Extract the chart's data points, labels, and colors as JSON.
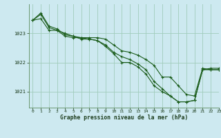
{
  "title": "Graphe pression niveau de la mer (hPa)",
  "background_color": "#cde9f0",
  "grid_color": "#a0ccbb",
  "line_color": "#1a5c1a",
  "marker_color": "#1a5c1a",
  "xlim": [
    -0.5,
    23
  ],
  "ylim": [
    1020.45,
    1024.0
  ],
  "yticks": [
    1021,
    1022,
    1023
  ],
  "xticks": [
    0,
    1,
    2,
    3,
    4,
    5,
    6,
    7,
    8,
    9,
    10,
    11,
    12,
    13,
    14,
    15,
    16,
    17,
    18,
    19,
    20,
    21,
    22,
    23
  ],
  "series": [
    [
      1023.45,
      1023.65,
      1023.2,
      1023.1,
      1023.0,
      1022.9,
      1022.85,
      1022.85,
      1022.85,
      1022.8,
      1022.6,
      1022.4,
      1022.35,
      1022.25,
      1022.1,
      1021.9,
      1021.5,
      1021.5,
      1021.2,
      1020.9,
      1020.85,
      1021.8,
      1021.75,
      1021.75
    ],
    [
      1023.45,
      1023.7,
      1023.25,
      1023.15,
      1022.95,
      1022.9,
      1022.8,
      1022.8,
      1022.75,
      1022.6,
      1022.35,
      1022.2,
      1022.1,
      1021.95,
      1021.75,
      1021.35,
      1021.1,
      1020.85,
      1020.65,
      1020.65,
      1020.7,
      1021.75,
      1021.75,
      1021.75
    ],
    [
      1023.45,
      1023.5,
      1023.1,
      1023.1,
      1022.9,
      1022.85,
      1022.85,
      1022.8,
      1022.75,
      1022.55,
      1022.3,
      1022.0,
      1022.0,
      1021.85,
      1021.6,
      1021.2,
      1021.0,
      1020.85,
      1020.65,
      1020.65,
      1020.7,
      1021.75,
      1021.8,
      1021.8
    ]
  ]
}
